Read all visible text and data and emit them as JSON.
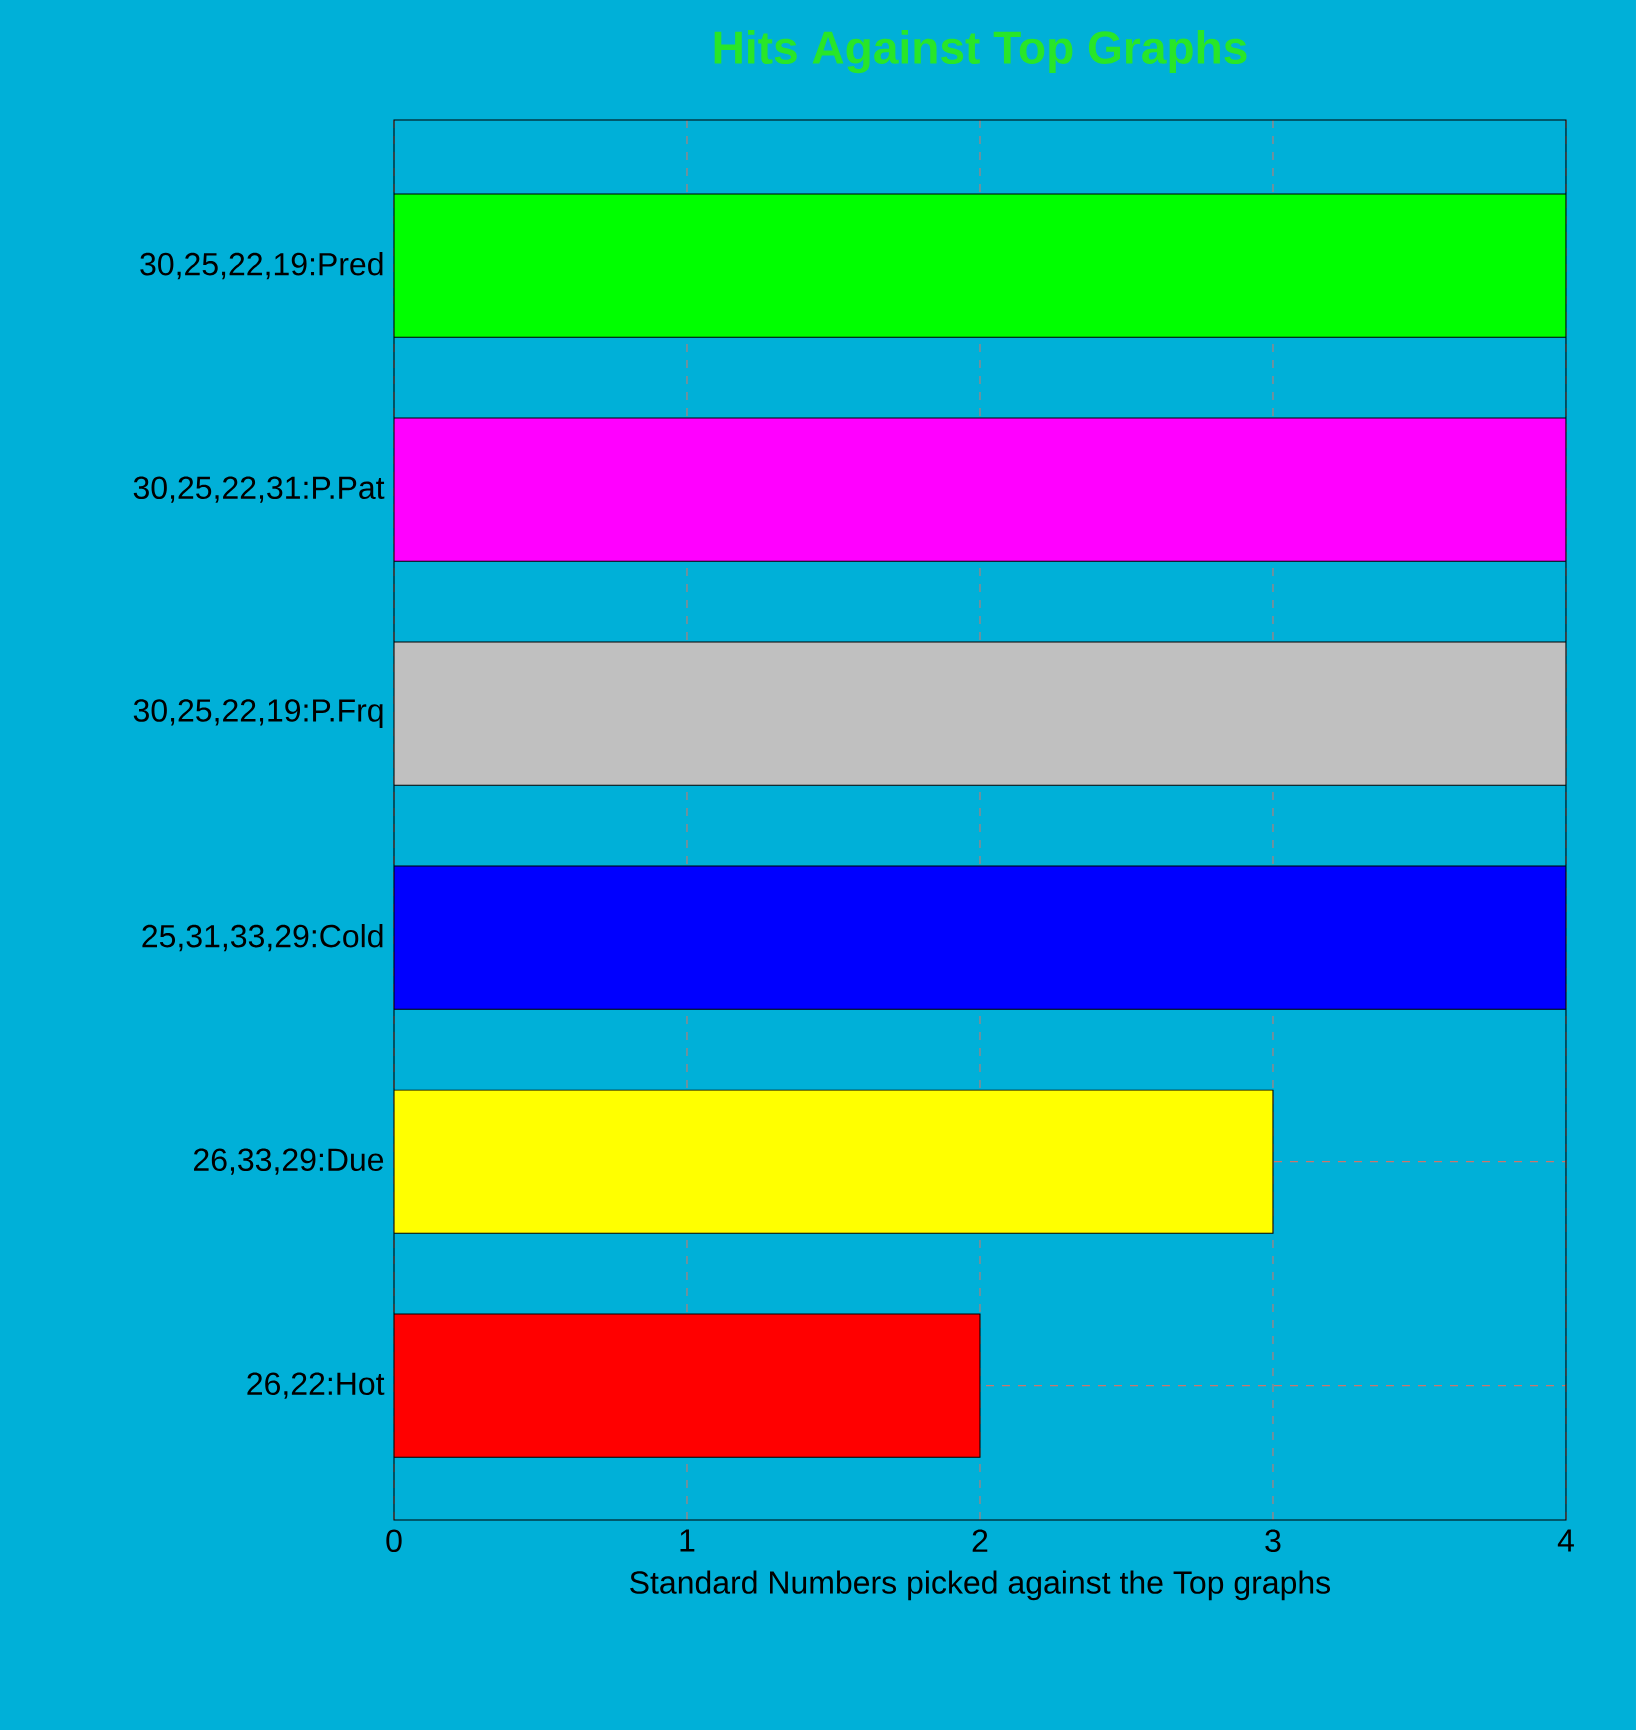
{
  "chart_data": {
    "type": "bar",
    "orientation": "horizontal",
    "title": "Hits Against Top Graphs",
    "xlabel": "Standard Numbers picked against the Top graphs",
    "categories": [
      "30,25,22,19:Pred",
      "30,25,22,31:P.Pat",
      "30,25,22,19:P.Frq",
      "25,31,33,29:Cold",
      "26,33,29:Due",
      "26,22:Hot"
    ],
    "values": [
      4,
      4,
      4,
      4,
      3,
      2
    ],
    "colors": [
      "#00ff00",
      "#ff00ff",
      "#c0c0c0",
      "#0000ff",
      "#ffff00",
      "#ff0000"
    ],
    "xlim": [
      0,
      4
    ],
    "xticks": [
      0,
      1,
      2,
      3,
      4
    ],
    "grid": true
  }
}
